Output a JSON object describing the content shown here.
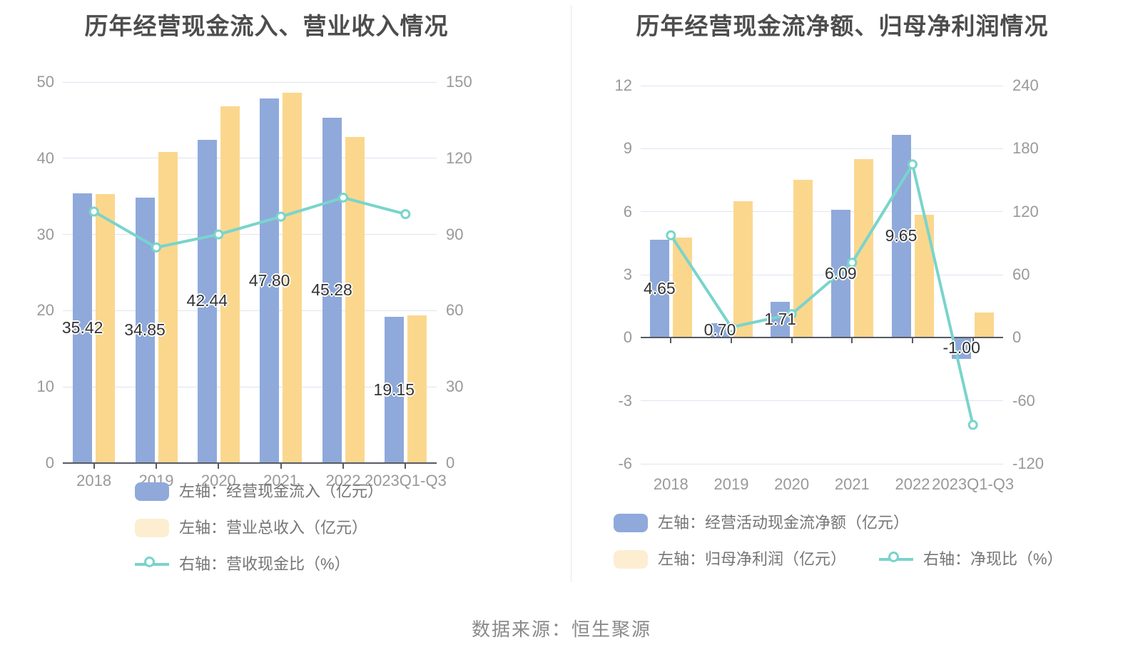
{
  "footer": {
    "text": "数据来源：恒生聚源"
  },
  "colors": {
    "background": "#FFFFFF",
    "bar_blue": "#8FA9DB",
    "bar_yellow": "#FBD78E",
    "legend_yellow": "#FDEED2",
    "line_teal": "#79D4CC",
    "title_text": "#4D4D4D",
    "axis_text": "#999999",
    "legend_text": "#757575",
    "grid_line": "#DFE4F0",
    "axis_line": "#565A62",
    "label_text": "#333333",
    "divider": "#E8E8E8"
  },
  "chart_data": [
    {
      "type": "bar",
      "title": "历年经营现金流入、营业收入情况",
      "categories": [
        "2018",
        "2019",
        "2020",
        "2021",
        "2022",
        "2023Q1-Q3"
      ],
      "left_axis": {
        "min": 0,
        "max": 50,
        "ticks": [
          "0",
          "10",
          "20",
          "30",
          "40",
          "50"
        ]
      },
      "right_axis": {
        "min": 0,
        "max": 150,
        "ticks": [
          "0",
          "30",
          "60",
          "90",
          "120",
          "150"
        ]
      },
      "grid": true,
      "legend_position": "vertical-left-bottom",
      "series": [
        {
          "name": "左轴：经营现金流入（亿元）",
          "kind": "bar",
          "axis": "left",
          "color_key": "bar_blue",
          "values": [
            35.42,
            34.85,
            42.44,
            47.8,
            45.28,
            19.15
          ],
          "labels": [
            "35.42",
            "34.85",
            "42.44",
            "47.80",
            "45.28",
            "19.15"
          ]
        },
        {
          "name": "左轴：营业总收入（亿元）",
          "kind": "bar",
          "axis": "left",
          "color_key": "bar_yellow",
          "values": [
            35.3,
            40.8,
            46.8,
            48.55,
            42.75,
            19.4
          ]
        },
        {
          "name": "右轴：营收现金比（%）",
          "kind": "line",
          "axis": "right",
          "color_key": "line_teal",
          "values": [
            99.0,
            84.9,
            90.0,
            97.0,
            104.5,
            98.0
          ]
        }
      ]
    },
    {
      "type": "bar",
      "title": "历年经营现金流净额、归母净利润情况",
      "categories": [
        "2018",
        "2019",
        "2020",
        "2021",
        "2022",
        "2023Q1-Q3"
      ],
      "left_axis": {
        "min": -6,
        "max": 12,
        "ticks": [
          "-6",
          "-3",
          "0",
          "3",
          "6",
          "9",
          "12"
        ]
      },
      "right_axis": {
        "min": -120,
        "max": 240,
        "ticks": [
          "-120",
          "-60",
          "0",
          "60",
          "120",
          "180",
          "240"
        ]
      },
      "grid": true,
      "legend_position": "two-row-bottom",
      "series": [
        {
          "name": "左轴：经营活动现金流净额（亿元）",
          "kind": "bar",
          "axis": "left",
          "color_key": "bar_blue",
          "values": [
            4.65,
            0.7,
            1.71,
            6.09,
            9.65,
            -1.0
          ],
          "labels": [
            "4.65",
            "0.70",
            "1.71",
            "6.09",
            "9.65",
            "-1.00"
          ]
        },
        {
          "name": "左轴：归母净利润（亿元）",
          "kind": "bar",
          "axis": "left",
          "color_key": "bar_yellow",
          "values": [
            4.75,
            6.5,
            7.52,
            8.5,
            5.85,
            1.2
          ]
        },
        {
          "name": "右轴：净现比（%）",
          "kind": "line",
          "axis": "right",
          "color_key": "line_teal",
          "values": [
            97.5,
            10.0,
            22.5,
            71.5,
            165.0,
            -83.0
          ]
        }
      ]
    }
  ]
}
